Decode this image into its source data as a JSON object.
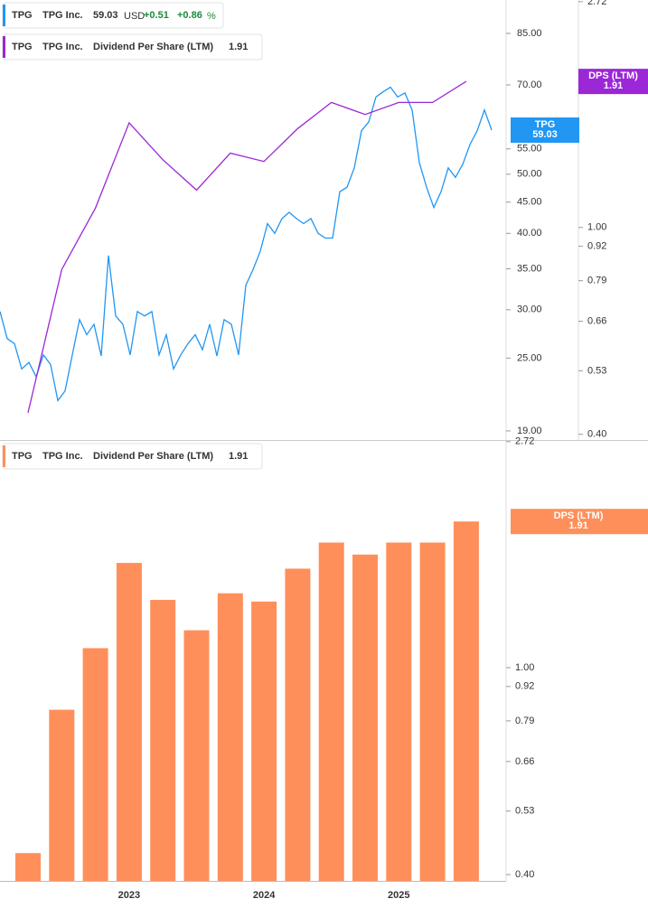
{
  "chart_data": [
    {
      "type": "line",
      "log_scale": true,
      "currency": "USD",
      "change": "+0.51",
      "change_pct": "+0.86",
      "pct_sign": "%",
      "series": [
        {
          "ticker": "TPG",
          "name": "TPG Inc.",
          "color": "#2196f3",
          "values": [
            29.8,
            26.9,
            26.4,
            24.0,
            24.6,
            23.3,
            25.3,
            24.4,
            21.3,
            22.1,
            25.3,
            28.9,
            27.3,
            28.4,
            25.2,
            36.8,
            29.3,
            28.4,
            25.3,
            29.8,
            29.3,
            29.8,
            25.3,
            27.3,
            24.0,
            25.3,
            26.4,
            27.3,
            25.8,
            28.4,
            25.2,
            28.9,
            28.4,
            25.3,
            32.9,
            34.9,
            37.4,
            41.5,
            40.0,
            42.3,
            43.3,
            42.3,
            41.5,
            42.3,
            40.0,
            39.3,
            39.3,
            46.8,
            47.6,
            51.2,
            58.9,
            60.9,
            66.9,
            68.2,
            69.4,
            66.9,
            67.9,
            63.7,
            52.2,
            47.6,
            44.1,
            46.8,
            51.2,
            49.4,
            51.9,
            55.9,
            58.9,
            63.7,
            59.03
          ]
        },
        {
          "ticker": "TPG",
          "name": "TPG Inc.",
          "metric": "Dividend Per Share (LTM)",
          "color": "#9b27d6",
          "axis": "y2",
          "values": [
            0.44,
            0.83,
            1.09,
            1.59,
            1.35,
            1.18,
            1.39,
            1.34,
            1.55,
            1.74,
            1.65,
            1.74,
            1.74,
            1.91
          ]
        }
      ],
      "last_labels": [
        {
          "title": "TPG",
          "value": 59.03,
          "axis": "y",
          "color": "#2196f3"
        },
        {
          "title": "DPS (LTM)",
          "value": 1.91,
          "axis": "y2",
          "color": "#9b27d6"
        }
      ],
      "ylim": [
        18.36,
        96.4
      ],
      "yticks": [
        {
          "value": 85,
          "label": "85.00"
        },
        {
          "value": 70,
          "label": "70.00"
        },
        {
          "value": 55,
          "label": "55.00"
        },
        {
          "value": 50,
          "label": "50.00"
        },
        {
          "value": 45,
          "label": "45.00"
        },
        {
          "value": 40,
          "label": "40.00"
        },
        {
          "value": 35,
          "label": "35.00"
        },
        {
          "value": 30,
          "label": "30.00"
        },
        {
          "value": 25,
          "label": "25.00"
        },
        {
          "value": 19,
          "label": "19.00"
        }
      ],
      "y2lim": [
        0.39,
        2.74
      ],
      "y2ticks": [
        2.72,
        {
          "value": 1,
          "label": "1.00"
        },
        0.92,
        0.79,
        0.66,
        0.53,
        {
          "value": 0.4,
          "label": "0.40"
        }
      ]
    },
    {
      "type": "bar",
      "log_scale": true,
      "series": [
        {
          "ticker": "TPG",
          "name": "TPG Inc.",
          "metric": "Dividend Per Share (LTM)",
          "color": "#ff8f5a",
          "values": [
            0.44,
            0.83,
            1.09,
            1.59,
            1.35,
            1.18,
            1.39,
            1.34,
            1.55,
            1.74,
            1.65,
            1.74,
            1.74,
            1.91
          ]
        }
      ],
      "categories": [
        null,
        null,
        null,
        "2023",
        null,
        null,
        null,
        "2024",
        null,
        null,
        null,
        "2025",
        null,
        null
      ],
      "last_labels": [
        {
          "title": "DPS (LTM)",
          "value": 1.91,
          "color": "#ff8f5a"
        }
      ],
      "ylim": [
        0.389,
        2.74
      ],
      "yticks": [
        2.72,
        {
          "value": 1,
          "label": "1.00"
        },
        0.92,
        0.79,
        0.66,
        0.53,
        {
          "value": 0.4,
          "label": "0.40"
        }
      ]
    }
  ]
}
